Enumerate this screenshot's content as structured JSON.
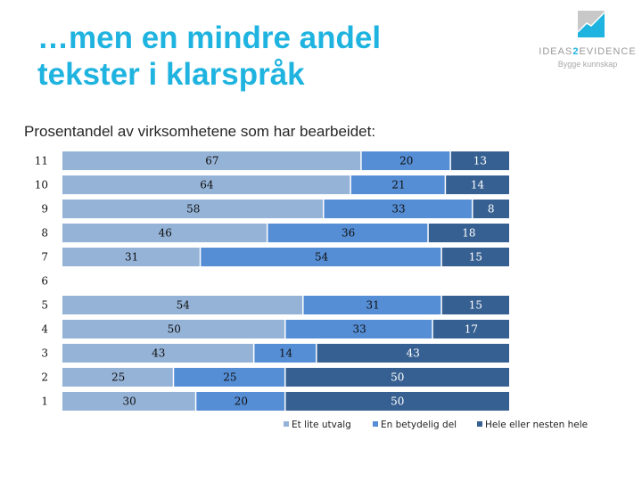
{
  "header": {
    "title_line1": "…men en mindre andel",
    "title_line2": "tekster i klarspråk",
    "subtitle": "Prosentandel av virksomhetene som har bearbeidet:"
  },
  "logo": {
    "name_prefix": "IDEAS",
    "name_number": "2",
    "name_suffix": "EVIDENCE",
    "tagline": "Bygge kunnskap",
    "mark_icon": "rising-chart-square-icon"
  },
  "chart_data": {
    "type": "bar",
    "orientation": "horizontal",
    "stacked": true,
    "title": "Prosentandel av virksomhetene som har bearbeidet:",
    "xlabel": "",
    "ylabel": "",
    "xlim": [
      0,
      100
    ],
    "grid": false,
    "legend_position": "bottom-right",
    "categories": [
      "11",
      "10",
      "9",
      "8",
      "7",
      "6",
      "5",
      "4",
      "3",
      "2",
      "1"
    ],
    "series": [
      {
        "name": "Et lite utvalg",
        "color": "#95b3d7",
        "label_color": "#111111",
        "values": [
          67,
          64,
          58,
          46,
          31,
          null,
          54,
          50,
          43,
          25,
          30
        ]
      },
      {
        "name": "En betydelig del",
        "color": "#558ed5",
        "label_color": "#111111",
        "values": [
          20,
          21,
          33,
          36,
          54,
          null,
          31,
          33,
          14,
          25,
          20
        ]
      },
      {
        "name": "Hele eller nesten hele",
        "color": "#376092",
        "label_color": "#ffffff",
        "values": [
          13,
          14,
          8,
          18,
          15,
          null,
          15,
          17,
          43,
          50,
          50
        ]
      }
    ]
  }
}
